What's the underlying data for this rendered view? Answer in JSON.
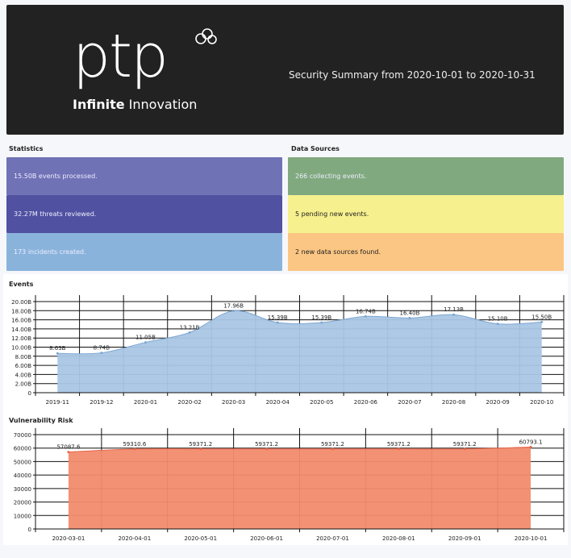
{
  "header": {
    "logo_text": "ptp",
    "logo_tag_bold": "Infinite",
    "logo_tag": "Innovation",
    "summary": "Security Summary from 2020-10-01 to 2020-10-31"
  },
  "statistics": {
    "title": "Statistics",
    "items": [
      {
        "text": "15.50B events processed.",
        "color": "#7072b6"
      },
      {
        "text": "32.27M threats reviewed.",
        "color": "#5051a0"
      },
      {
        "text": "173 incidents created.",
        "color": "#8ab3dc"
      }
    ]
  },
  "data_sources": {
    "title": "Data Sources",
    "items": [
      {
        "text": "266 collecting events.",
        "color": "#81a97f"
      },
      {
        "text": "5 pending new events.",
        "color": "#f6f08e"
      },
      {
        "text": "2 new data sources found.",
        "color": "#fbc683"
      }
    ]
  },
  "chart_data": [
    {
      "type": "area",
      "title": "Events",
      "categories": [
        "2019-11",
        "2019-12",
        "2020-01",
        "2020-02",
        "2020-03",
        "2020-04",
        "2020-05",
        "2020-06",
        "2020-07",
        "2020-08",
        "2020-09",
        "2020-10"
      ],
      "values": [
        8.63,
        8.74,
        11.05,
        13.21,
        17.96,
        15.39,
        15.39,
        16.74,
        16.4,
        17.13,
        15.1,
        15.5
      ],
      "labels": [
        "8.63B",
        "8.74B",
        "11.05B",
        "13.21B",
        "17.96B",
        "15.39B",
        "15.39B",
        "16.74B",
        "16.40B",
        "17.13B",
        "15.10B",
        "15.50B"
      ],
      "yticks": [
        "0",
        "2.00B",
        "4.00B",
        "6.00B",
        "8.00B",
        "10.00B",
        "12.00B",
        "14.00B",
        "16.00B",
        "18.00B",
        "20.00B"
      ],
      "ylim": [
        0,
        20
      ],
      "color": "#a9c6e4",
      "stroke": "#7fa7d2",
      "grid": true
    },
    {
      "type": "area",
      "title": "Vulnerability Risk",
      "categories": [
        "2020-03-01",
        "2020-04-01",
        "2020-05-01",
        "2020-06-01",
        "2020-07-01",
        "2020-08-01",
        "2020-09-01",
        "2020-10-01"
      ],
      "values": [
        57087.6,
        59310.6,
        59371.2,
        59371.2,
        59371.2,
        59371.2,
        59371.2,
        60793.1
      ],
      "labels": [
        "57087.6",
        "59310.6",
        "59371.2",
        "59371.2",
        "59371.2",
        "59371.2",
        "59371.2",
        "60793.1"
      ],
      "yticks": [
        "0",
        "10000",
        "20000",
        "30000",
        "40000",
        "50000",
        "60000",
        "70000"
      ],
      "ylim": [
        0,
        70000
      ],
      "color": "#f28b6d",
      "stroke": "#e8664a",
      "grid": true
    }
  ]
}
